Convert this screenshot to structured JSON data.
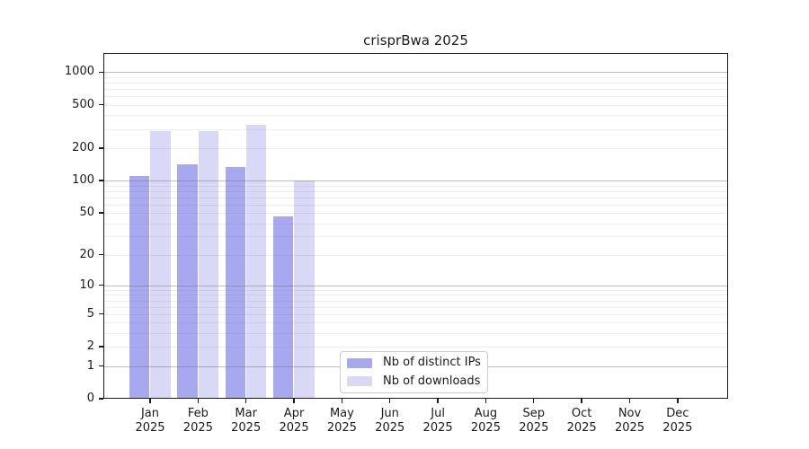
{
  "chart_data": {
    "type": "bar",
    "title": "crisprBwa 2025",
    "categories": [
      "Jan 2025",
      "Feb 2025",
      "Mar 2025",
      "Apr 2025",
      "May 2025",
      "Jun 2025",
      "Jul 2025",
      "Aug 2025",
      "Sep 2025",
      "Oct 2025",
      "Nov 2025",
      "Dec 2025"
    ],
    "series": [
      {
        "name": "Nb of distinct IPs",
        "color": "#a8a8f0",
        "values": [
          110,
          142,
          134,
          46,
          null,
          null,
          null,
          null,
          null,
          null,
          null,
          null
        ]
      },
      {
        "name": "Nb of downloads",
        "color": "#d9d9f7",
        "values": [
          288,
          285,
          330,
          101,
          null,
          null,
          null,
          null,
          null,
          null,
          null,
          null
        ]
      }
    ],
    "y_ticks": [
      0,
      1,
      2,
      5,
      10,
      20,
      50,
      100,
      200,
      500,
      1000
    ],
    "yscale": "log10(1+y)",
    "ylim": [
      0,
      1500
    ],
    "grid": {
      "major_at": [
        1,
        10,
        100,
        1000
      ],
      "minor": "mantissas 2-9 of each decade"
    },
    "legend_position": "bottom-center"
  },
  "colors": {
    "distinct_ips": "#a8a8f0",
    "downloads": "#d9d9f7",
    "grid_major": "#b2b2b2",
    "grid_minor": "#e9e9e9",
    "axis_spine": "#1a1a1a",
    "legend_border": "#cccccc",
    "background": "#ffffff"
  }
}
